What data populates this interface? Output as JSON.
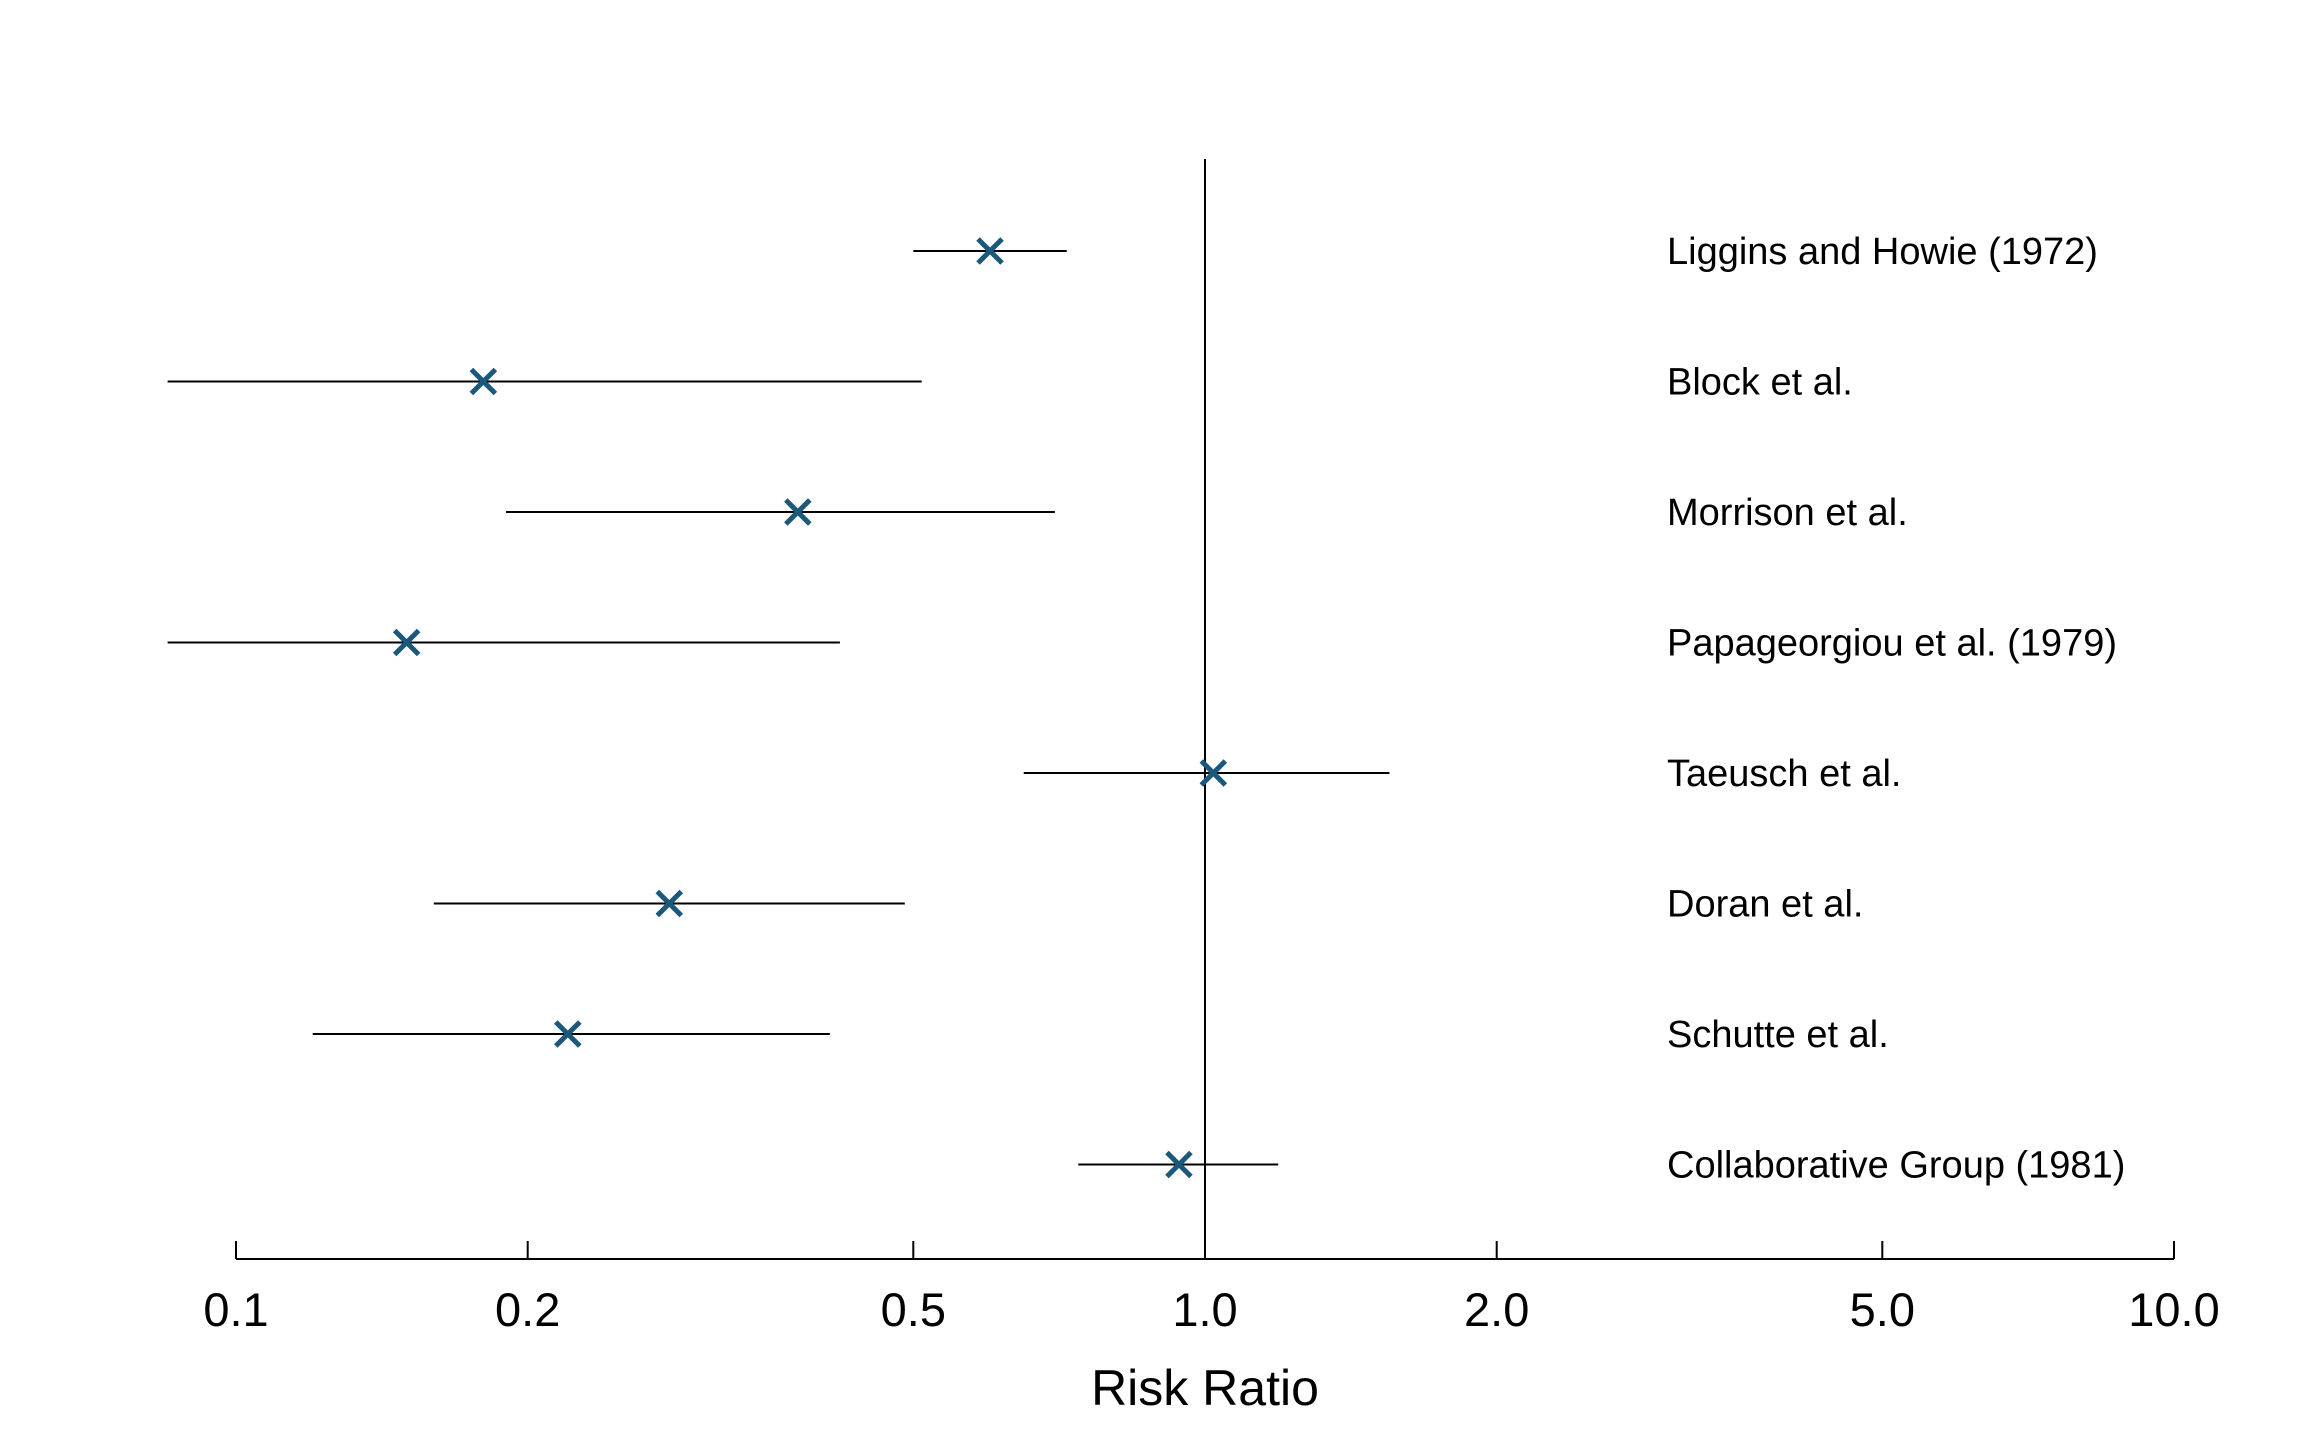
{
  "chart_data": {
    "type": "forest",
    "scale": "log",
    "xlabel": "Risk Ratio",
    "xlim": [
      0.1,
      10.0
    ],
    "reference_line": 1.0,
    "ticks": [
      {
        "value": 0.1,
        "label": "0.1"
      },
      {
        "value": 0.2,
        "label": "0.2"
      },
      {
        "value": 0.5,
        "label": "0.5"
      },
      {
        "value": 1.0,
        "label": "1.0"
      },
      {
        "value": 2.0,
        "label": "2.0"
      },
      {
        "value": 5.0,
        "label": "5.0"
      },
      {
        "value": 10.0,
        "label": "10.0"
      }
    ],
    "studies": [
      {
        "name": "Liggins and Howie (1972)",
        "rr": 0.6,
        "lower": 0.5,
        "upper": 0.72
      },
      {
        "name": "Block et al.",
        "rr": 0.18,
        "lower": 0.08,
        "upper": 0.51
      },
      {
        "name": "Morrison et al.",
        "rr": 0.38,
        "lower": 0.19,
        "upper": 0.7
      },
      {
        "name": "Papageorgiou et al. (1979)",
        "rr": 0.15,
        "lower": 0.08,
        "upper": 0.42
      },
      {
        "name": "Taeusch et al.",
        "rr": 1.02,
        "lower": 0.65,
        "upper": 1.55
      },
      {
        "name": "Doran et al.",
        "rr": 0.28,
        "lower": 0.16,
        "upper": 0.49
      },
      {
        "name": "Schutte et al.",
        "rr": 0.22,
        "lower": 0.12,
        "upper": 0.41
      },
      {
        "name": "Collaborative Group (1981)",
        "rr": 0.94,
        "lower": 0.74,
        "upper": 1.19
      }
    ],
    "colors": {
      "marker": "#1b5879",
      "line": "#000000"
    },
    "grid": false
  }
}
